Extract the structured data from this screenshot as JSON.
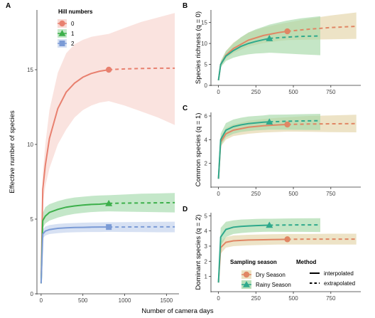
{
  "colors": {
    "hill_q0": "#e8806f",
    "hill_q1": "#3db04b",
    "hill_q2": "#7b9bd6",
    "dry": "#e08664",
    "rainy": "#2fa98c",
    "dry_band": "#e7d9b3",
    "rainy_band": "#a6d8a8"
  },
  "legend_A": {
    "title": "Hill numbers",
    "items": [
      {
        "label": "0",
        "icon": "circle-icon"
      },
      {
        "label": "1",
        "icon": "triangle-icon"
      },
      {
        "label": "2",
        "icon": "square-icon"
      }
    ]
  },
  "legend_BD": {
    "season_title": "Sampling season",
    "seasons": [
      "Dry Season",
      "Rainy Season"
    ],
    "method_title": "Method",
    "methods": [
      "interpolated",
      "extrapolated"
    ]
  },
  "chart_data": [
    {
      "panel": "A",
      "type": "line",
      "xlabel": "Number of camera days",
      "ylabel": "Effective number of species",
      "xlim": [
        -50,
        1650
      ],
      "ylim": [
        0,
        19
      ],
      "x_ticks": [
        0,
        500,
        1000,
        1500
      ],
      "y_ticks": [
        0,
        5,
        10,
        15
      ],
      "series": [
        {
          "name": "0",
          "x": [
            0,
            20,
            50,
            100,
            200,
            300,
            400,
            500,
            600,
            700,
            810
          ],
          "y": [
            0.7,
            7.0,
            8.6,
            10.4,
            12.4,
            13.5,
            14.1,
            14.5,
            14.75,
            14.9,
            15.0
          ],
          "lower": [
            0.7,
            6.0,
            7.2,
            8.4,
            10.0,
            11.0,
            11.8,
            12.3,
            12.6,
            12.8,
            12.9
          ],
          "upper": [
            0.7,
            8.0,
            10.0,
            12.3,
            14.8,
            16.1,
            16.7,
            17.0,
            17.2,
            17.3,
            17.4
          ],
          "sample_x": 810,
          "sample_y": 15.0,
          "extrap_x": [
            810,
            1000,
            1200,
            1400,
            1600
          ],
          "extrap_y": [
            15.0,
            15.05,
            15.08,
            15.1,
            15.1
          ],
          "extrap_lower": [
            12.9,
            12.6,
            12.2,
            11.8,
            11.3
          ],
          "extrap_upper": [
            17.4,
            17.8,
            18.2,
            18.5,
            18.8
          ]
        },
        {
          "name": "1",
          "x": [
            0,
            20,
            50,
            100,
            200,
            300,
            400,
            500,
            600,
            700,
            810
          ],
          "y": [
            0.7,
            4.9,
            5.2,
            5.45,
            5.65,
            5.8,
            5.88,
            5.94,
            5.98,
            6.0,
            6.05
          ],
          "lower": [
            0.7,
            4.4,
            4.7,
            4.9,
            5.1,
            5.25,
            5.35,
            5.42,
            5.47,
            5.5,
            5.52
          ],
          "upper": [
            0.7,
            5.4,
            5.8,
            6.0,
            6.2,
            6.35,
            6.45,
            6.5,
            6.55,
            6.58,
            6.6
          ],
          "sample_x": 810,
          "sample_y": 6.05,
          "extrap_x": [
            810,
            1000,
            1200,
            1400,
            1600
          ],
          "extrap_y": [
            6.05,
            6.07,
            6.08,
            6.09,
            6.1
          ],
          "extrap_lower": [
            5.52,
            5.5,
            5.48,
            5.46,
            5.45
          ],
          "extrap_upper": [
            6.6,
            6.65,
            6.7,
            6.72,
            6.75
          ]
        },
        {
          "name": "2",
          "x": [
            0,
            20,
            50,
            100,
            200,
            300,
            400,
            500,
            600,
            700,
            810
          ],
          "y": [
            0.7,
            4.0,
            4.2,
            4.3,
            4.38,
            4.42,
            4.44,
            4.45,
            4.46,
            4.47,
            4.47
          ],
          "lower": [
            0.7,
            3.7,
            3.9,
            4.0,
            4.06,
            4.1,
            4.12,
            4.13,
            4.14,
            4.14,
            4.15
          ],
          "upper": [
            0.7,
            4.3,
            4.5,
            4.6,
            4.68,
            4.72,
            4.74,
            4.76,
            4.77,
            4.78,
            4.79
          ],
          "sample_x": 810,
          "sample_y": 4.47,
          "extrap_x": [
            810,
            1000,
            1200,
            1400,
            1600
          ],
          "extrap_y": [
            4.47,
            4.47,
            4.48,
            4.48,
            4.48
          ],
          "extrap_lower": [
            4.15,
            4.14,
            4.13,
            4.12,
            4.12
          ],
          "extrap_upper": [
            4.79,
            4.8,
            4.81,
            4.82,
            4.83
          ]
        }
      ]
    },
    {
      "panel": "B",
      "type": "line",
      "ylabel": "Species richness (q = 0)",
      "xlim": [
        -50,
        950
      ],
      "ylim": [
        0,
        18
      ],
      "x_ticks": [
        0,
        250,
        500,
        750
      ],
      "y_ticks": [
        0,
        5,
        10,
        15
      ],
      "series": [
        {
          "name": "Dry Season",
          "x": [
            0,
            15,
            50,
            100,
            200,
            300,
            400,
            460
          ],
          "y": [
            1.2,
            5.0,
            7.2,
            8.8,
            10.8,
            11.9,
            12.6,
            12.9
          ],
          "lower": [
            1.2,
            4.5,
            6.4,
            7.7,
            9.3,
            10.1,
            10.6,
            10.8
          ],
          "upper": [
            1.2,
            5.5,
            8.2,
            10.2,
            12.6,
            13.8,
            14.6,
            15.0
          ],
          "sample_x": 460,
          "sample_y": 12.9,
          "extrap_x": [
            460,
            600,
            750,
            920
          ],
          "extrap_y": [
            12.9,
            13.4,
            13.8,
            14.1
          ],
          "extrap_lower": [
            10.8,
            10.9,
            11.0,
            11.1
          ],
          "extrap_upper": [
            15.0,
            15.9,
            16.7,
            17.4
          ]
        },
        {
          "name": "Rainy Season",
          "x": [
            0,
            15,
            50,
            100,
            150,
            200,
            250,
            300,
            340
          ],
          "y": [
            1.2,
            5.0,
            7.0,
            8.3,
            9.3,
            10.0,
            10.5,
            10.9,
            11.2
          ],
          "lower": [
            1.2,
            4.3,
            5.8,
            6.6,
            7.1,
            7.4,
            7.6,
            7.7,
            7.8
          ],
          "upper": [
            1.2,
            5.8,
            8.2,
            10.0,
            11.5,
            12.6,
            13.4,
            14.0,
            14.5
          ],
          "sample_x": 340,
          "sample_y": 11.2,
          "extrap_x": [
            340,
            450,
            550,
            680
          ],
          "extrap_y": [
            11.2,
            11.5,
            11.7,
            11.8
          ],
          "extrap_lower": [
            7.8,
            7.6,
            7.4,
            7.2
          ],
          "extrap_upper": [
            14.5,
            15.4,
            16.0,
            16.5
          ]
        }
      ]
    },
    {
      "panel": "C",
      "type": "line",
      "ylabel": "Common species (q = 1)",
      "xlim": [
        -50,
        950
      ],
      "ylim": [
        0,
        6.3
      ],
      "x_ticks": [
        0,
        250,
        500,
        750
      ],
      "y_ticks": [
        2,
        4,
        6
      ],
      "series": [
        {
          "name": "Dry Season",
          "x": [
            0,
            15,
            50,
            100,
            200,
            300,
            400,
            460
          ],
          "y": [
            0.7,
            3.8,
            4.5,
            4.8,
            5.05,
            5.18,
            5.25,
            5.28
          ],
          "lower": [
            0.7,
            3.4,
            4.0,
            4.3,
            4.5,
            4.6,
            4.65,
            4.68
          ],
          "upper": [
            0.7,
            4.2,
            5.0,
            5.3,
            5.6,
            5.75,
            5.85,
            5.9
          ],
          "sample_x": 460,
          "sample_y": 5.28,
          "extrap_x": [
            460,
            600,
            750,
            920
          ],
          "extrap_y": [
            5.28,
            5.32,
            5.34,
            5.35
          ],
          "extrap_lower": [
            4.68,
            4.66,
            4.64,
            4.62
          ],
          "extrap_upper": [
            5.9,
            6.0,
            6.05,
            6.1
          ]
        },
        {
          "name": "Rainy Season",
          "x": [
            0,
            15,
            50,
            100,
            150,
            200,
            250,
            300,
            340
          ],
          "y": [
            0.7,
            4.0,
            4.8,
            5.1,
            5.25,
            5.35,
            5.42,
            5.47,
            5.5
          ],
          "lower": [
            0.7,
            3.5,
            4.2,
            4.5,
            4.65,
            4.72,
            4.78,
            4.82,
            4.85
          ],
          "upper": [
            0.7,
            4.5,
            5.4,
            5.7,
            5.85,
            5.95,
            6.0,
            6.05,
            6.1
          ],
          "sample_x": 340,
          "sample_y": 5.5,
          "extrap_x": [
            340,
            450,
            550,
            680
          ],
          "extrap_y": [
            5.5,
            5.55,
            5.58,
            5.6
          ],
          "extrap_lower": [
            4.85,
            4.84,
            4.83,
            4.82
          ],
          "extrap_upper": [
            6.1,
            6.12,
            6.15,
            6.18
          ]
        }
      ]
    },
    {
      "panel": "D",
      "type": "line",
      "xlabel": "Number of camera days",
      "ylabel": "Dominant species (q = 2)",
      "xlim": [
        -50,
        950
      ],
      "ylim": [
        0,
        5.2
      ],
      "x_ticks": [
        0,
        250,
        500,
        750
      ],
      "y_ticks": [
        1,
        2,
        3,
        4,
        5
      ],
      "series": [
        {
          "name": "Dry Season",
          "x": [
            0,
            15,
            50,
            100,
            200,
            300,
            400,
            460
          ],
          "y": [
            0.6,
            2.9,
            3.25,
            3.35,
            3.4,
            3.42,
            3.44,
            3.45
          ],
          "lower": [
            0.6,
            2.5,
            2.9,
            3.0,
            3.05,
            3.08,
            3.1,
            3.1
          ],
          "upper": [
            0.6,
            3.3,
            3.6,
            3.7,
            3.75,
            3.77,
            3.79,
            3.8
          ],
          "sample_x": 460,
          "sample_y": 3.45,
          "extrap_x": [
            460,
            600,
            750,
            920
          ],
          "extrap_y": [
            3.45,
            3.46,
            3.46,
            3.46
          ],
          "extrap_lower": [
            3.1,
            3.1,
            3.1,
            3.1
          ],
          "extrap_upper": [
            3.8,
            3.8,
            3.82,
            3.82
          ]
        },
        {
          "name": "Rainy Season",
          "x": [
            0,
            15,
            50,
            100,
            150,
            200,
            250,
            300,
            340
          ],
          "y": [
            0.6,
            3.6,
            4.1,
            4.25,
            4.3,
            4.33,
            4.35,
            4.37,
            4.38
          ],
          "lower": [
            0.6,
            3.0,
            3.6,
            3.8,
            3.86,
            3.9,
            3.92,
            3.94,
            3.95
          ],
          "upper": [
            0.6,
            4.2,
            4.6,
            4.7,
            4.75,
            4.77,
            4.79,
            4.8,
            4.8
          ],
          "sample_x": 340,
          "sample_y": 4.38,
          "extrap_x": [
            340,
            450,
            550,
            680
          ],
          "extrap_y": [
            4.38,
            4.39,
            4.4,
            4.4
          ],
          "extrap_lower": [
            3.95,
            3.94,
            3.94,
            3.93
          ],
          "extrap_upper": [
            4.8,
            4.82,
            4.83,
            4.84
          ]
        }
      ]
    }
  ]
}
